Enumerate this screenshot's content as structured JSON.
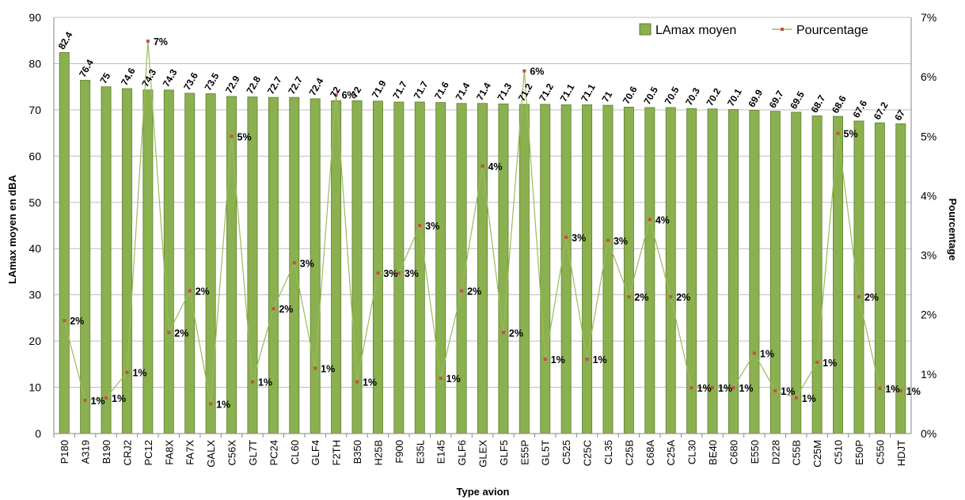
{
  "chart_data": {
    "type": "bar",
    "xlabel": "Type avion",
    "ylabel": "LAmax moyen en dBA",
    "y2label": "Pourcentage",
    "ylim": [
      0,
      90
    ],
    "y2lim": [
      0,
      7
    ],
    "yticks": [
      "0",
      "10",
      "20",
      "30",
      "40",
      "50",
      "60",
      "70",
      "80",
      "90"
    ],
    "y2ticks": [
      "0%",
      "1%",
      "2%",
      "3%",
      "4%",
      "5%",
      "6%",
      "7%"
    ],
    "grid": true,
    "legend_position": "top-right",
    "categories": [
      "P180",
      "A319",
      "B190",
      "CRJ2",
      "PC12",
      "FA8X",
      "FA7X",
      "GALX",
      "C56X",
      "GL7T",
      "PC24",
      "CL60",
      "GLF4",
      "F2TH",
      "B350",
      "H25B",
      "F900",
      "E35L",
      "E145",
      "GLF6",
      "GLEX",
      "GLF5",
      "E55P",
      "GL5T",
      "C525",
      "C25C",
      "CL35",
      "C25B",
      "C68A",
      "C25A",
      "CL30",
      "BE40",
      "C680",
      "E550",
      "D228",
      "C55B",
      "C25M",
      "C510",
      "E50P",
      "C550",
      "HDJT"
    ],
    "series": [
      {
        "name": "LAmax moyen",
        "type": "bar",
        "axis": "left",
        "color": "#8BB04F",
        "values": [
          82.4,
          76.4,
          75,
          74.6,
          74.3,
          74.3,
          73.6,
          73.5,
          72.9,
          72.8,
          72.7,
          72.7,
          72.4,
          72,
          72,
          71.9,
          71.7,
          71.7,
          71.6,
          71.4,
          71.4,
          71.3,
          71.2,
          71.2,
          71.1,
          71.1,
          71,
          70.6,
          70.5,
          70.5,
          70.3,
          70.2,
          70.1,
          69.9,
          69.7,
          69.5,
          68.7,
          68.6,
          67.6,
          67.2,
          67
        ],
        "labels": [
          "82.4",
          "76.4",
          "75",
          "74.6",
          "74.3",
          "74.3",
          "73.6",
          "73.5",
          "72.9",
          "72.8",
          "72.7",
          "72.7",
          "72.4",
          "72",
          "72",
          "71.9",
          "71.7",
          "71.7",
          "71.6",
          "71.4",
          "71.4",
          "71.3",
          "71.2",
          "71.2",
          "71.1",
          "71.1",
          "71",
          "70.6",
          "70.5",
          "70.5",
          "70.3",
          "70.2",
          "70.1",
          "69.9",
          "69.7",
          "69.5",
          "68.7",
          "68.6",
          "67.6",
          "67.2",
          "67"
        ]
      },
      {
        "name": "Pourcentage",
        "type": "line",
        "axis": "right",
        "color": "#9BBB59",
        "marker_color": "#C0504D",
        "values": [
          1.9,
          0.56,
          0.6,
          1.03,
          6.6,
          1.7,
          2.4,
          0.5,
          5.0,
          0.87,
          2.1,
          2.87,
          1.1,
          5.7,
          0.87,
          2.7,
          2.7,
          3.5,
          0.93,
          2.4,
          4.5,
          1.7,
          6.1,
          1.25,
          3.3,
          1.25,
          3.25,
          2.3,
          3.6,
          2.3,
          0.77,
          0.77,
          0.77,
          1.35,
          0.72,
          0.6,
          1.2,
          5.05,
          2.3,
          0.76,
          0.72
        ],
        "labels": [
          "2%",
          "1%",
          "1%",
          "1%",
          "7%",
          "2%",
          "2%",
          "1%",
          "5%",
          "1%",
          "2%",
          "3%",
          "1%",
          "6%",
          "1%",
          "3%",
          "3%",
          "3%",
          "1%",
          "2%",
          "4%",
          "2%",
          "6%",
          "1%",
          "3%",
          "1%",
          "3%",
          "2%",
          "4%",
          "2%",
          "1%",
          "1%",
          "1%",
          "1%",
          "1%",
          "1%",
          "1%",
          "5%",
          "2%",
          "1%",
          "1%"
        ]
      }
    ]
  }
}
